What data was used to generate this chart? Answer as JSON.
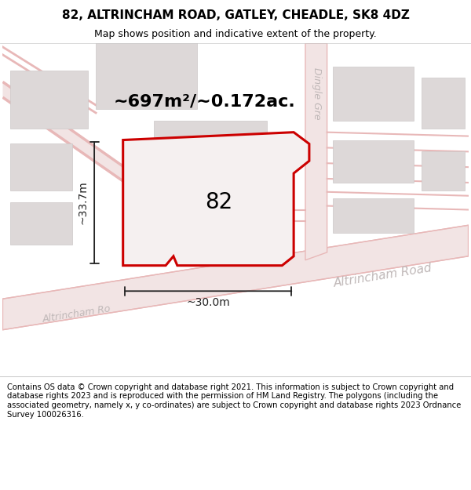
{
  "title": "82, ALTRINCHAM ROAD, GATLEY, CHEADLE, SK8 4DZ",
  "subtitle": "Map shows position and indicative extent of the property.",
  "footer": "Contains OS data © Crown copyright and database right 2021. This information is subject to Crown copyright and database rights 2023 and is reproduced with the permission of HM Land Registry. The polygons (including the associated geometry, namely x, y co-ordinates) are subject to Crown copyright and database rights 2023 Ordnance Survey 100026316.",
  "area_label": "~697m²/~0.172ac.",
  "width_label": "~30.0m",
  "height_label": "~33.7m",
  "number_label": "82",
  "map_bg": "#f5f0f0",
  "road_fill": "#f2e4e4",
  "road_line": "#e8b8b8",
  "building_fill": "#ddd8d8",
  "building_edge": "#ccc8c8",
  "plot_edge": "#cc0000",
  "plot_fill": "#f5f0f0",
  "dim_color": "#222222",
  "road_label_color": "#c0b8b8",
  "title_fontsize": 11,
  "subtitle_fontsize": 9,
  "footer_fontsize": 7.2,
  "area_fontsize": 16,
  "number_fontsize": 20,
  "dim_fontsize": 10,
  "road_fontsize": 11
}
